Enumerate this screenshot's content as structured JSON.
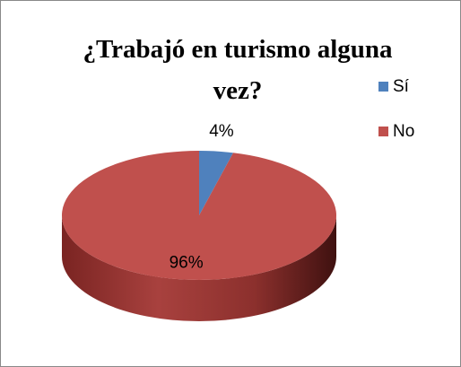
{
  "chart_data": {
    "type": "pie",
    "title": "¿Trabajó en turismo alguna vez?",
    "categories": [
      "Sí",
      "No"
    ],
    "values": [
      4,
      96
    ],
    "value_labels": [
      "4%",
      "96%"
    ],
    "colors": [
      "#4f81bd",
      "#c0504d"
    ],
    "legend": "right"
  }
}
